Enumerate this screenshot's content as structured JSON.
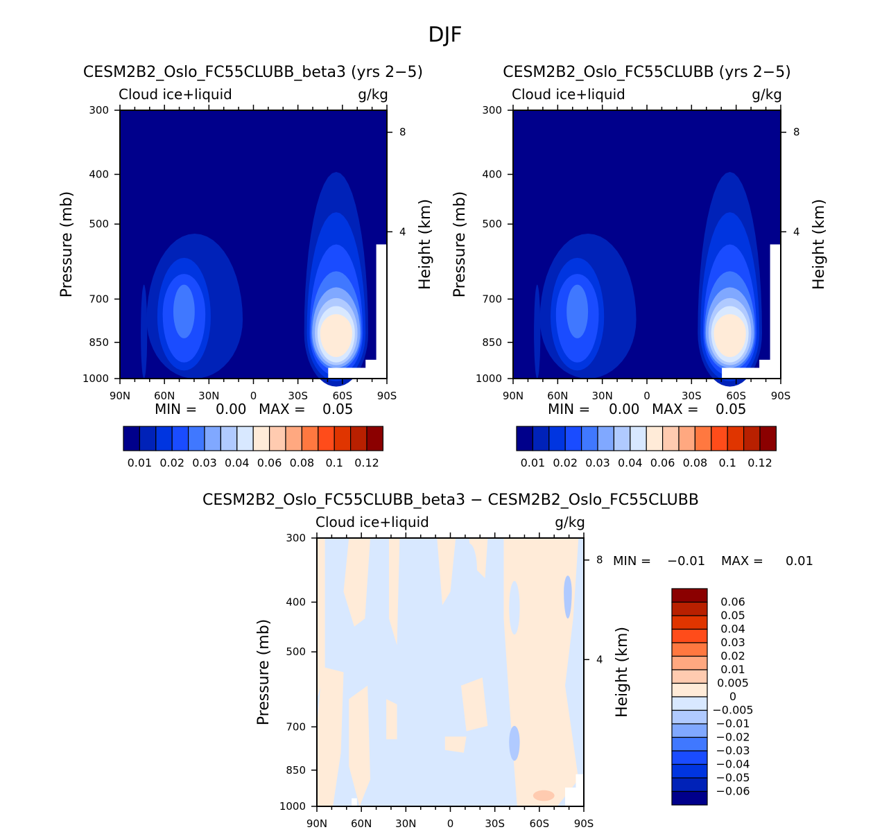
{
  "chart_data": {
    "type": "heatmap",
    "title": "DJF",
    "palette": [
      "#00008B",
      "#0022B8",
      "#0035E0",
      "#1A4CFF",
      "#4078FF",
      "#80A8FF",
      "#B0CAFF",
      "#D8E8FF",
      "#FFEBD8",
      "#FFCBB0",
      "#FFA880",
      "#FF7840",
      "#FF4C1A",
      "#E03500",
      "#B82000",
      "#8B0000"
    ],
    "panels": [
      {
        "title": "CESM2B2_Oslo_FC55CLUBB_beta3 (yrs 2-5)",
        "left_label": "Cloud ice+liquid",
        "right_label": "g/kg",
        "ylabel": "Pressure (mb)",
        "y2label": "Height (km)",
        "xticks": [
          "90N",
          "60N",
          "30N",
          "0",
          "30S",
          "60S",
          "90S"
        ],
        "yticks": [
          "300",
          "400",
          "500",
          "700",
          "850",
          "1000"
        ],
        "y2ticks": [
          "8",
          "4"
        ],
        "min_label": "MIN =",
        "min": "0.00",
        "max_label": "MAX =",
        "max": "0.05",
        "colorbar_labels": [
          "0.01",
          "0.02",
          "0.03",
          "0.04",
          "0.06",
          "0.08",
          "0.1",
          "0.12"
        ],
        "features": "SH maximum ~0.04 g/kg near 60S, 900 mb; NH secondary maximum ~0.03 g/kg near 55N, 850 mb"
      },
      {
        "title": "CESM2B2_Oslo_FC55CLUBB (yrs 2-5)",
        "left_label": "Cloud ice+liquid",
        "right_label": "g/kg",
        "ylabel": "Pressure (mb)",
        "y2label": "Height (km)",
        "xticks": [
          "90N",
          "60N",
          "30N",
          "0",
          "30S",
          "60S",
          "90S"
        ],
        "yticks": [
          "300",
          "400",
          "500",
          "700",
          "850",
          "1000"
        ],
        "y2ticks": [
          "8",
          "4"
        ],
        "min_label": "MIN =",
        "min": "0.00",
        "max_label": "MAX =",
        "max": "0.05",
        "colorbar_labels": [
          "0.01",
          "0.02",
          "0.03",
          "0.04",
          "0.06",
          "0.08",
          "0.1",
          "0.12"
        ]
      },
      {
        "title": "CESM2B2_Oslo_FC55CLUBB_beta3 - CESM2B2_Oslo_FC55CLUBB",
        "left_label": "Cloud ice+liquid",
        "right_label": "g/kg",
        "ylabel": "Pressure (mb)",
        "y2label": "Height (km)",
        "xticks": [
          "90N",
          "60N",
          "30N",
          "0",
          "30S",
          "60S",
          "90S"
        ],
        "yticks": [
          "300",
          "400",
          "500",
          "700",
          "850",
          "1000"
        ],
        "y2ticks": [
          "8",
          "4"
        ],
        "min_label": "MIN =",
        "min": "-0.01",
        "max_label": "MAX =",
        "max": "0.01",
        "colorbar_labels": [
          "0.06",
          "0.05",
          "0.04",
          "0.03",
          "0.02",
          "0.01",
          "0.005",
          "0",
          "-0.005",
          "-0.01",
          "-0.02",
          "-0.03",
          "-0.04",
          "-0.05",
          "-0.06"
        ]
      }
    ]
  }
}
